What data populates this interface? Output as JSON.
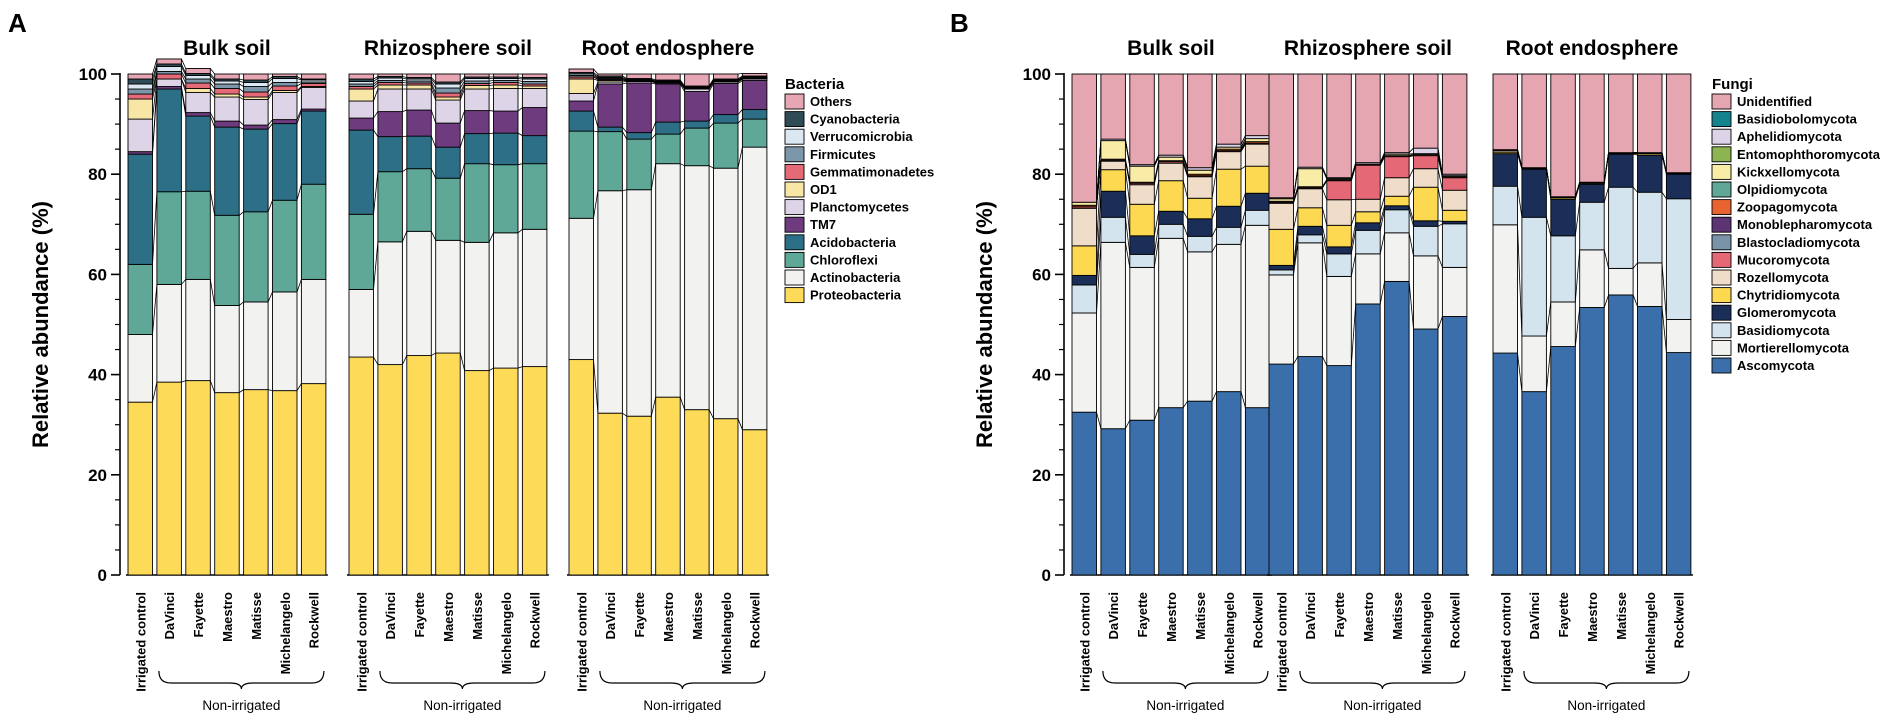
{
  "chart_data": [
    {
      "panel": "A",
      "type": "stacked-bar",
      "ylabel": "Relative abundance (%)",
      "ylim": [
        0,
        100
      ],
      "yticks": [
        0,
        20,
        40,
        60,
        80,
        100
      ],
      "legend_title": "Bacteria",
      "groups": [
        "Bulk soil",
        "Rhizosphere soil",
        "Root endosphere"
      ],
      "categories": [
        "Irrigated control",
        "DaVinci",
        "Fayette",
        "Maestro",
        "Matisse",
        "Michelangelo",
        "Rockwell"
      ],
      "bracket_label": "Non-irrigated",
      "series_order_bottom_to_top": [
        "Proteobacteria",
        "Actinobacteria",
        "Chloroflexi",
        "Acidobacteria",
        "TM7",
        "Planctomycetes",
        "OD1",
        "Gemmatimonadetes",
        "Firmicutes",
        "Verrucomicrobia",
        "Cyanobacteria",
        "Others"
      ],
      "legend_order": [
        "Others",
        "Cyanobacteria",
        "Verrucomicrobia",
        "Firmicutes",
        "Gemmatimonadetes",
        "OD1",
        "Planctomycetes",
        "TM7",
        "Acidobacteria",
        "Chloroflexi",
        "Actinobacteria",
        "Proteobacteria"
      ],
      "colors": {
        "Proteobacteria": "#fddb59",
        "Actinobacteria": "#f2f2f1",
        "Chloroflexi": "#5fa898",
        "Acidobacteria": "#2d6f86",
        "TM7": "#6e3b7f",
        "Planctomycetes": "#ddd5e7",
        "OD1": "#f7e6a5",
        "Gemmatimonadetes": "#e56a78",
        "Firmicutes": "#7d97aa",
        "Verrucomicrobia": "#dbe8f3",
        "Cyanobacteria": "#2f4b56",
        "Others": "#e6a6b3"
      },
      "data": {
        "Bulk soil": [
          [
            34.5,
            13.5,
            14,
            22,
            0.5,
            6.5,
            4,
            1,
            1,
            1,
            1,
            1
          ],
          [
            38.5,
            19.5,
            18.5,
            20.5,
            0.5,
            1.5,
            0,
            1,
            0.5,
            1,
            0.5,
            1
          ],
          [
            38.8,
            20.2,
            17.6,
            15,
            0.7,
            4,
            0.8,
            1.1,
            0.8,
            0.7,
            0.4,
            1
          ],
          [
            36.4,
            17.4,
            18,
            17.6,
            1.2,
            4.8,
            0.6,
            1.1,
            0.9,
            0.6,
            0.4,
            1
          ],
          [
            37,
            17.5,
            18,
            16.5,
            0.8,
            5.1,
            0.5,
            1,
            1.1,
            0.8,
            0.5,
            1.2
          ],
          [
            36.8,
            19.7,
            18.3,
            15.3,
            0.8,
            5.4,
            0.4,
            0.9,
            0.7,
            0.8,
            0.4,
            0.5
          ],
          [
            38.2,
            20.8,
            19,
            14.6,
            0.4,
            4.3,
            0.2,
            0.6,
            0.3,
            0.4,
            0.2,
            1
          ]
        ],
        "Rhizosphere soil": [
          [
            43.5,
            13.5,
            15,
            16.8,
            2.4,
            3.4,
            2.4,
            0.5,
            0.5,
            0.5,
            0.5,
            1
          ],
          [
            42,
            24.5,
            14,
            7,
            5,
            4.5,
            0.8,
            0.5,
            0.4,
            0.5,
            0.3,
            0.5
          ],
          [
            43.8,
            24.8,
            12.5,
            6.5,
            5.2,
            4.2,
            0.8,
            0.4,
            0.4,
            0.4,
            0.3,
            0.7
          ],
          [
            44.3,
            22.5,
            12.4,
            6.2,
            4.8,
            4.6,
            0.6,
            0.8,
            1,
            0.8,
            0.4,
            1.6
          ],
          [
            40.8,
            25.6,
            15.7,
            6,
            4.6,
            4.3,
            0.7,
            0.4,
            0.5,
            0.5,
            0.3,
            0.6
          ],
          [
            41.3,
            27,
            13.6,
            6.3,
            4.4,
            4.5,
            0.7,
            0.5,
            0.4,
            0.4,
            0.3,
            0.6
          ],
          [
            41.6,
            27.4,
            13.1,
            5.6,
            5.6,
            3.8,
            0.5,
            0.4,
            0.5,
            0.5,
            0.3,
            0.7
          ]
        ],
        "Root endosphere": [
          [
            43,
            28.2,
            17.4,
            4,
            2,
            1.5,
            2.9,
            0.4,
            0.3,
            0.3,
            0.3,
            0.7
          ],
          [
            32.3,
            44.4,
            11.8,
            0.9,
            8.6,
            0.4,
            0.3,
            0.2,
            0.2,
            0.2,
            0.3,
            0.4
          ],
          [
            31.7,
            45.2,
            10.1,
            1.3,
            9.9,
            0.3,
            0.1,
            0.1,
            0.1,
            0.1,
            0.2,
            0.9
          ],
          [
            35.5,
            46.6,
            5.9,
            2.4,
            7.6,
            0.2,
            0.1,
            0.1,
            0.1,
            0.1,
            0.2,
            1.2
          ],
          [
            33,
            48.7,
            7.5,
            1.4,
            5.9,
            0.5,
            0.1,
            0.1,
            0.1,
            0.1,
            0.2,
            2.4
          ],
          [
            31.2,
            50,
            9,
            1.7,
            6.2,
            0.3,
            0.1,
            0.1,
            0.1,
            0.1,
            0.2,
            1
          ],
          [
            29,
            56.4,
            5.6,
            1.9,
            5.8,
            0.3,
            0.1,
            0.1,
            0.1,
            0.1,
            0.2,
            0.5
          ]
        ]
      }
    },
    {
      "panel": "B",
      "type": "stacked-bar",
      "ylabel": "Relative abundance (%)",
      "ylim": [
        0,
        100
      ],
      "yticks": [
        0,
        20,
        40,
        60,
        80,
        100
      ],
      "legend_title": "Fungi",
      "groups": [
        "Bulk soil",
        "Rhizosphere soil",
        "Root endosphere"
      ],
      "categories": [
        "Irrigated control",
        "DaVinci",
        "Fayette",
        "Maestro",
        "Matisse",
        "Michelangelo",
        "Rockwell"
      ],
      "bracket_label": "Non-irrigated",
      "series_order_bottom_to_top": [
        "Ascomycota",
        "Mortierellomycota",
        "Basidiomycota",
        "Glomeromycota",
        "Chytridiomycota",
        "Rozellomycota",
        "Mucoromycota",
        "Blastocladiomycota",
        "Monoblepharomycota",
        "Zoopagomycota",
        "Olpidiomycota",
        "Kickxellomycota",
        "Entomophthoromycota",
        "Aphelidiomycota",
        "Basidiobolomycota",
        "Unidentified"
      ],
      "legend_order": [
        "Unidentified",
        "Basidiobolomycota",
        "Aphelidiomycota",
        "Entomophthoromycota",
        "Kickxellomycota",
        "Olpidiomycota",
        "Zoopagomycota",
        "Monoblepharomycota",
        "Blastocladiomycota",
        "Mucoromycota",
        "Rozellomycota",
        "Chytridiomycota",
        "Glomeromycota",
        "Basidiomycota",
        "Mortierellomycota",
        "Ascomycota"
      ],
      "colors": {
        "Ascomycota": "#3a6fac",
        "Mortierellomycota": "#f2f2f1",
        "Basidiomycota": "#d4e4ef",
        "Glomeromycota": "#1a2e57",
        "Chytridiomycota": "#fdd951",
        "Rozellomycota": "#efdcc9",
        "Mucoromycota": "#e56877",
        "Blastocladiomycota": "#7a93a9",
        "Monoblepharomycota": "#5c3473",
        "Zoopagomycota": "#e8632f",
        "Olpidiomycota": "#5fa898",
        "Kickxellomycota": "#f8eca6",
        "Entomophthoromycota": "#8db453",
        "Aphelidiomycota": "#ddd3e8",
        "Basidiobolomycota": "#15838e",
        "Unidentified": "#e5a6b2"
      },
      "data": {
        "Bulk soil": [
          [
            32.5,
            19.8,
            5.6,
            1.9,
            5.9,
            7.5,
            0.3,
            0,
            0,
            0.3,
            0,
            0.6,
            0,
            0,
            0,
            25.6
          ],
          [
            29.2,
            37.2,
            5,
            5.2,
            4.3,
            1.7,
            0.2,
            0,
            0,
            0.2,
            0,
            3.7,
            0,
            0.3,
            0,
            13
          ],
          [
            30.9,
            30.5,
            2.6,
            3.7,
            6.3,
            3.9,
            0.3,
            0,
            0,
            0.2,
            0,
            3.2,
            0,
            0.3,
            0,
            18.1
          ],
          [
            33.4,
            33.8,
            2.8,
            2.6,
            6.1,
            3.5,
            0.3,
            0,
            0,
            0.2,
            0,
            0.7,
            0,
            0.4,
            0,
            16.2
          ],
          [
            34.7,
            29.8,
            3.1,
            3.5,
            4.1,
            4.3,
            0.2,
            0,
            0,
            0.3,
            0,
            0.8,
            0,
            0.5,
            0,
            18.7
          ],
          [
            36.6,
            29.4,
            3.4,
            4.2,
            7.4,
            3.5,
            0.2,
            0,
            0,
            0.3,
            0,
            0.4,
            0,
            0.6,
            0,
            14
          ],
          [
            33.4,
            36.4,
            3,
            3.4,
            5.4,
            4.4,
            0.2,
            0,
            0,
            0.3,
            0,
            0.6,
            0,
            0.6,
            0,
            12.3
          ]
        ],
        "Rhizosphere soil": [
          [
            42.1,
            17.8,
            1,
            0.9,
            7.2,
            5.2,
            0.2,
            0,
            0,
            0.2,
            0,
            0.5,
            0,
            0.2,
            0,
            24.7
          ],
          [
            43.6,
            22.7,
            1.6,
            1.7,
            3.7,
            3.8,
            0.2,
            0,
            0,
            0.2,
            0,
            3.6,
            0,
            0.3,
            0,
            18.6
          ],
          [
            41.8,
            17.8,
            4.5,
            1.4,
            4.3,
            5.1,
            3.8,
            0,
            0,
            0.2,
            0,
            0.2,
            0,
            0.2,
            0,
            20.7
          ],
          [
            54.1,
            10,
            4.7,
            1.5,
            2.2,
            2.5,
            6.8,
            0,
            0,
            0.2,
            0,
            0,
            0,
            0.3,
            0,
            17.7
          ],
          [
            58.6,
            9.7,
            4.6,
            0.8,
            1.9,
            3.7,
            4.2,
            0,
            0,
            0.2,
            0,
            0.3,
            0,
            0.3,
            0,
            15.7
          ],
          [
            49.1,
            14.6,
            5.9,
            1.1,
            6.7,
            3.7,
            2.6,
            0,
            0,
            0.2,
            0,
            0.2,
            0,
            1.1,
            0,
            14.8
          ],
          [
            51.6,
            9.8,
            8.7,
            0.5,
            2.2,
            4,
            2.5,
            0,
            0,
            0.2,
            0,
            0.2,
            0,
            0.3,
            0,
            20
          ]
        ],
        "Root endosphere": [
          [
            44.3,
            25.6,
            7.7,
            6.5,
            0.3,
            0.3,
            0.2,
            0,
            0,
            0,
            0,
            0,
            0,
            0,
            0,
            15.1
          ],
          [
            36.6,
            11.1,
            23.7,
            9.6,
            0.1,
            0.1,
            0.1,
            0,
            0,
            0,
            0,
            0,
            0,
            0,
            0,
            18.7
          ],
          [
            45.6,
            8.9,
            13.2,
            7.3,
            0.3,
            0.1,
            0.1,
            0,
            0,
            0,
            0,
            0,
            0,
            0,
            0,
            24.5
          ],
          [
            53.4,
            11.5,
            9.5,
            3.6,
            0.2,
            0.1,
            0.1,
            0,
            0,
            0,
            0,
            0,
            0,
            0,
            0,
            21.6
          ],
          [
            55.9,
            5.3,
            16.2,
            6.6,
            0.1,
            0.1,
            0.1,
            0,
            0,
            0,
            0,
            0,
            0,
            0,
            0,
            15.7
          ],
          [
            53.6,
            8.7,
            14.1,
            7.4,
            0.3,
            0.1,
            0.1,
            0,
            0,
            0,
            0,
            0,
            0,
            0,
            0,
            15.7
          ],
          [
            44.4,
            6.6,
            24.1,
            4.9,
            0.1,
            0.1,
            0.1,
            0,
            0,
            0,
            0,
            0,
            0,
            0,
            0,
            19.7
          ]
        ]
      }
    }
  ]
}
